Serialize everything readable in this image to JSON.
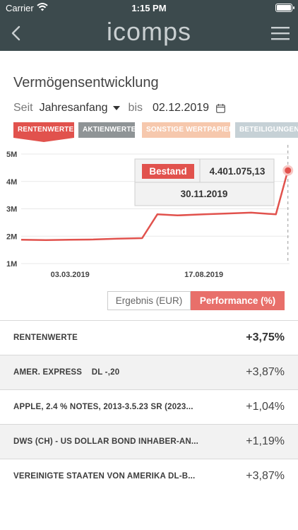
{
  "status_bar": {
    "carrier": "Carrier",
    "time": "1:15 PM"
  },
  "nav": {
    "logo": "icomps",
    "icons": [
      "back-chevron-icon",
      "hamburger-menu-icon"
    ]
  },
  "section_title": "Vermögensentwicklung",
  "filter": {
    "since_label": "Seit",
    "period": "Jahresanfang",
    "until_label": "bis",
    "date": "02.12.2019"
  },
  "asset_tabs": [
    {
      "label": "RENTENWERTE",
      "active": true
    },
    {
      "label": "AKTIENWERTE",
      "active": false
    },
    {
      "label": "SONSTIGE WERTPAPIERE",
      "active": false
    },
    {
      "label": "BETEILIGUNGEN / ...",
      "active": false
    }
  ],
  "colors": {
    "nav": "#3c4a4d",
    "accent": "#e1524d",
    "line": "#e1524d"
  },
  "chart_data": {
    "type": "line",
    "y_ticks": [
      "5M",
      "4M",
      "3M",
      "2M",
      "1M"
    ],
    "ylim": [
      1000000,
      5000000
    ],
    "x_ticks": [
      "03.03.2019",
      "17.08.2019"
    ],
    "x_tick_dates": [
      "2019-03-03",
      "2019-08-17"
    ],
    "xlim": [
      "2019-01-01",
      "2019-12-02"
    ],
    "series": [
      {
        "points": [
          [
            "2019-01-01",
            1870000
          ],
          [
            "2019-02-01",
            1860000
          ],
          [
            "2019-03-03",
            1870000
          ],
          [
            "2019-04-01",
            1880000
          ],
          [
            "2019-05-01",
            1910000
          ],
          [
            "2019-06-01",
            1930000
          ],
          [
            "2019-06-20",
            2800000
          ],
          [
            "2019-07-15",
            2760000
          ],
          [
            "2019-08-17",
            2800000
          ],
          [
            "2019-09-15",
            2830000
          ],
          [
            "2019-10-15",
            2860000
          ],
          [
            "2019-11-15",
            2800000
          ],
          [
            "2019-11-30",
            4401075
          ]
        ]
      }
    ],
    "tooltip": {
      "label": "Bestand",
      "value": "4.401.075,13",
      "date": "30.11.2019",
      "x": "2019-11-30",
      "y": 4401075
    }
  },
  "toggle": {
    "result_label": "Ergebnis (EUR)",
    "performance_label": "Performance (%)",
    "selected": "performance"
  },
  "performance": {
    "header": {
      "name": "RENTENWERTE",
      "value": "+3,75%"
    },
    "rows": [
      {
        "name": "AMER. EXPRESS    DL -,20",
        "value": "+3,87%"
      },
      {
        "name": "APPLE, 2.4 % NOTES, 2013-3.5.23 SR (2023...",
        "value": "+1,04%"
      },
      {
        "name": "DWS (CH) - US DOLLAR BOND INHABER-AN...",
        "value": "+1,19%"
      },
      {
        "name": "VEREINIGTE STAATEN VON AMERIKA DL-B...",
        "value": "+3,87%"
      }
    ]
  }
}
